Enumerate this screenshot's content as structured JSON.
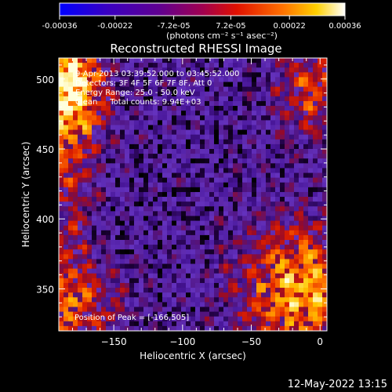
{
  "colorbar": {
    "ticks": [
      "-0.00036",
      "-0.00022",
      "-7.2e-05",
      "7.2e-05",
      "0.00022",
      "0.00036"
    ],
    "tick_values": [
      -0.00036,
      -0.00022,
      -7.2e-05,
      7.2e-05,
      0.00022,
      0.00036
    ],
    "range": [
      -0.00036,
      0.00036
    ],
    "unit_label": "(photons cm⁻² s⁻¹ asec⁻²)",
    "colors": [
      "#0000ff",
      "#4000a0",
      "#800070",
      "#d02000",
      "#ff7000",
      "#ffd000",
      "#ffffff"
    ]
  },
  "chart_data": {
    "type": "heatmap",
    "title": "Reconstructed RHESSI Image",
    "xlabel": "Heliocentric X (arcsec)",
    "ylabel": "Heliocentric Y (arcsec)",
    "xlim": [
      -190,
      5
    ],
    "ylim": [
      320,
      515
    ],
    "xticks": [
      -150,
      -100,
      -50,
      0
    ],
    "yticks": [
      350,
      400,
      450,
      500
    ],
    "annotations": [
      "9-Apr-2013 03:39:52.000 to 03:45:52.000",
      "Detectors: 3F 4F 5F 6F 7F 8F, Att 0",
      "Energy Range: 25.0 - 50.0 keV",
      "Clean     Total counts: 9.94E+03"
    ],
    "peak_label": "Position of Peak = [-166,505]",
    "peak": [
      -166,
      505
    ]
  },
  "footer": {
    "timestamp": "12-May-2022 13:15"
  }
}
